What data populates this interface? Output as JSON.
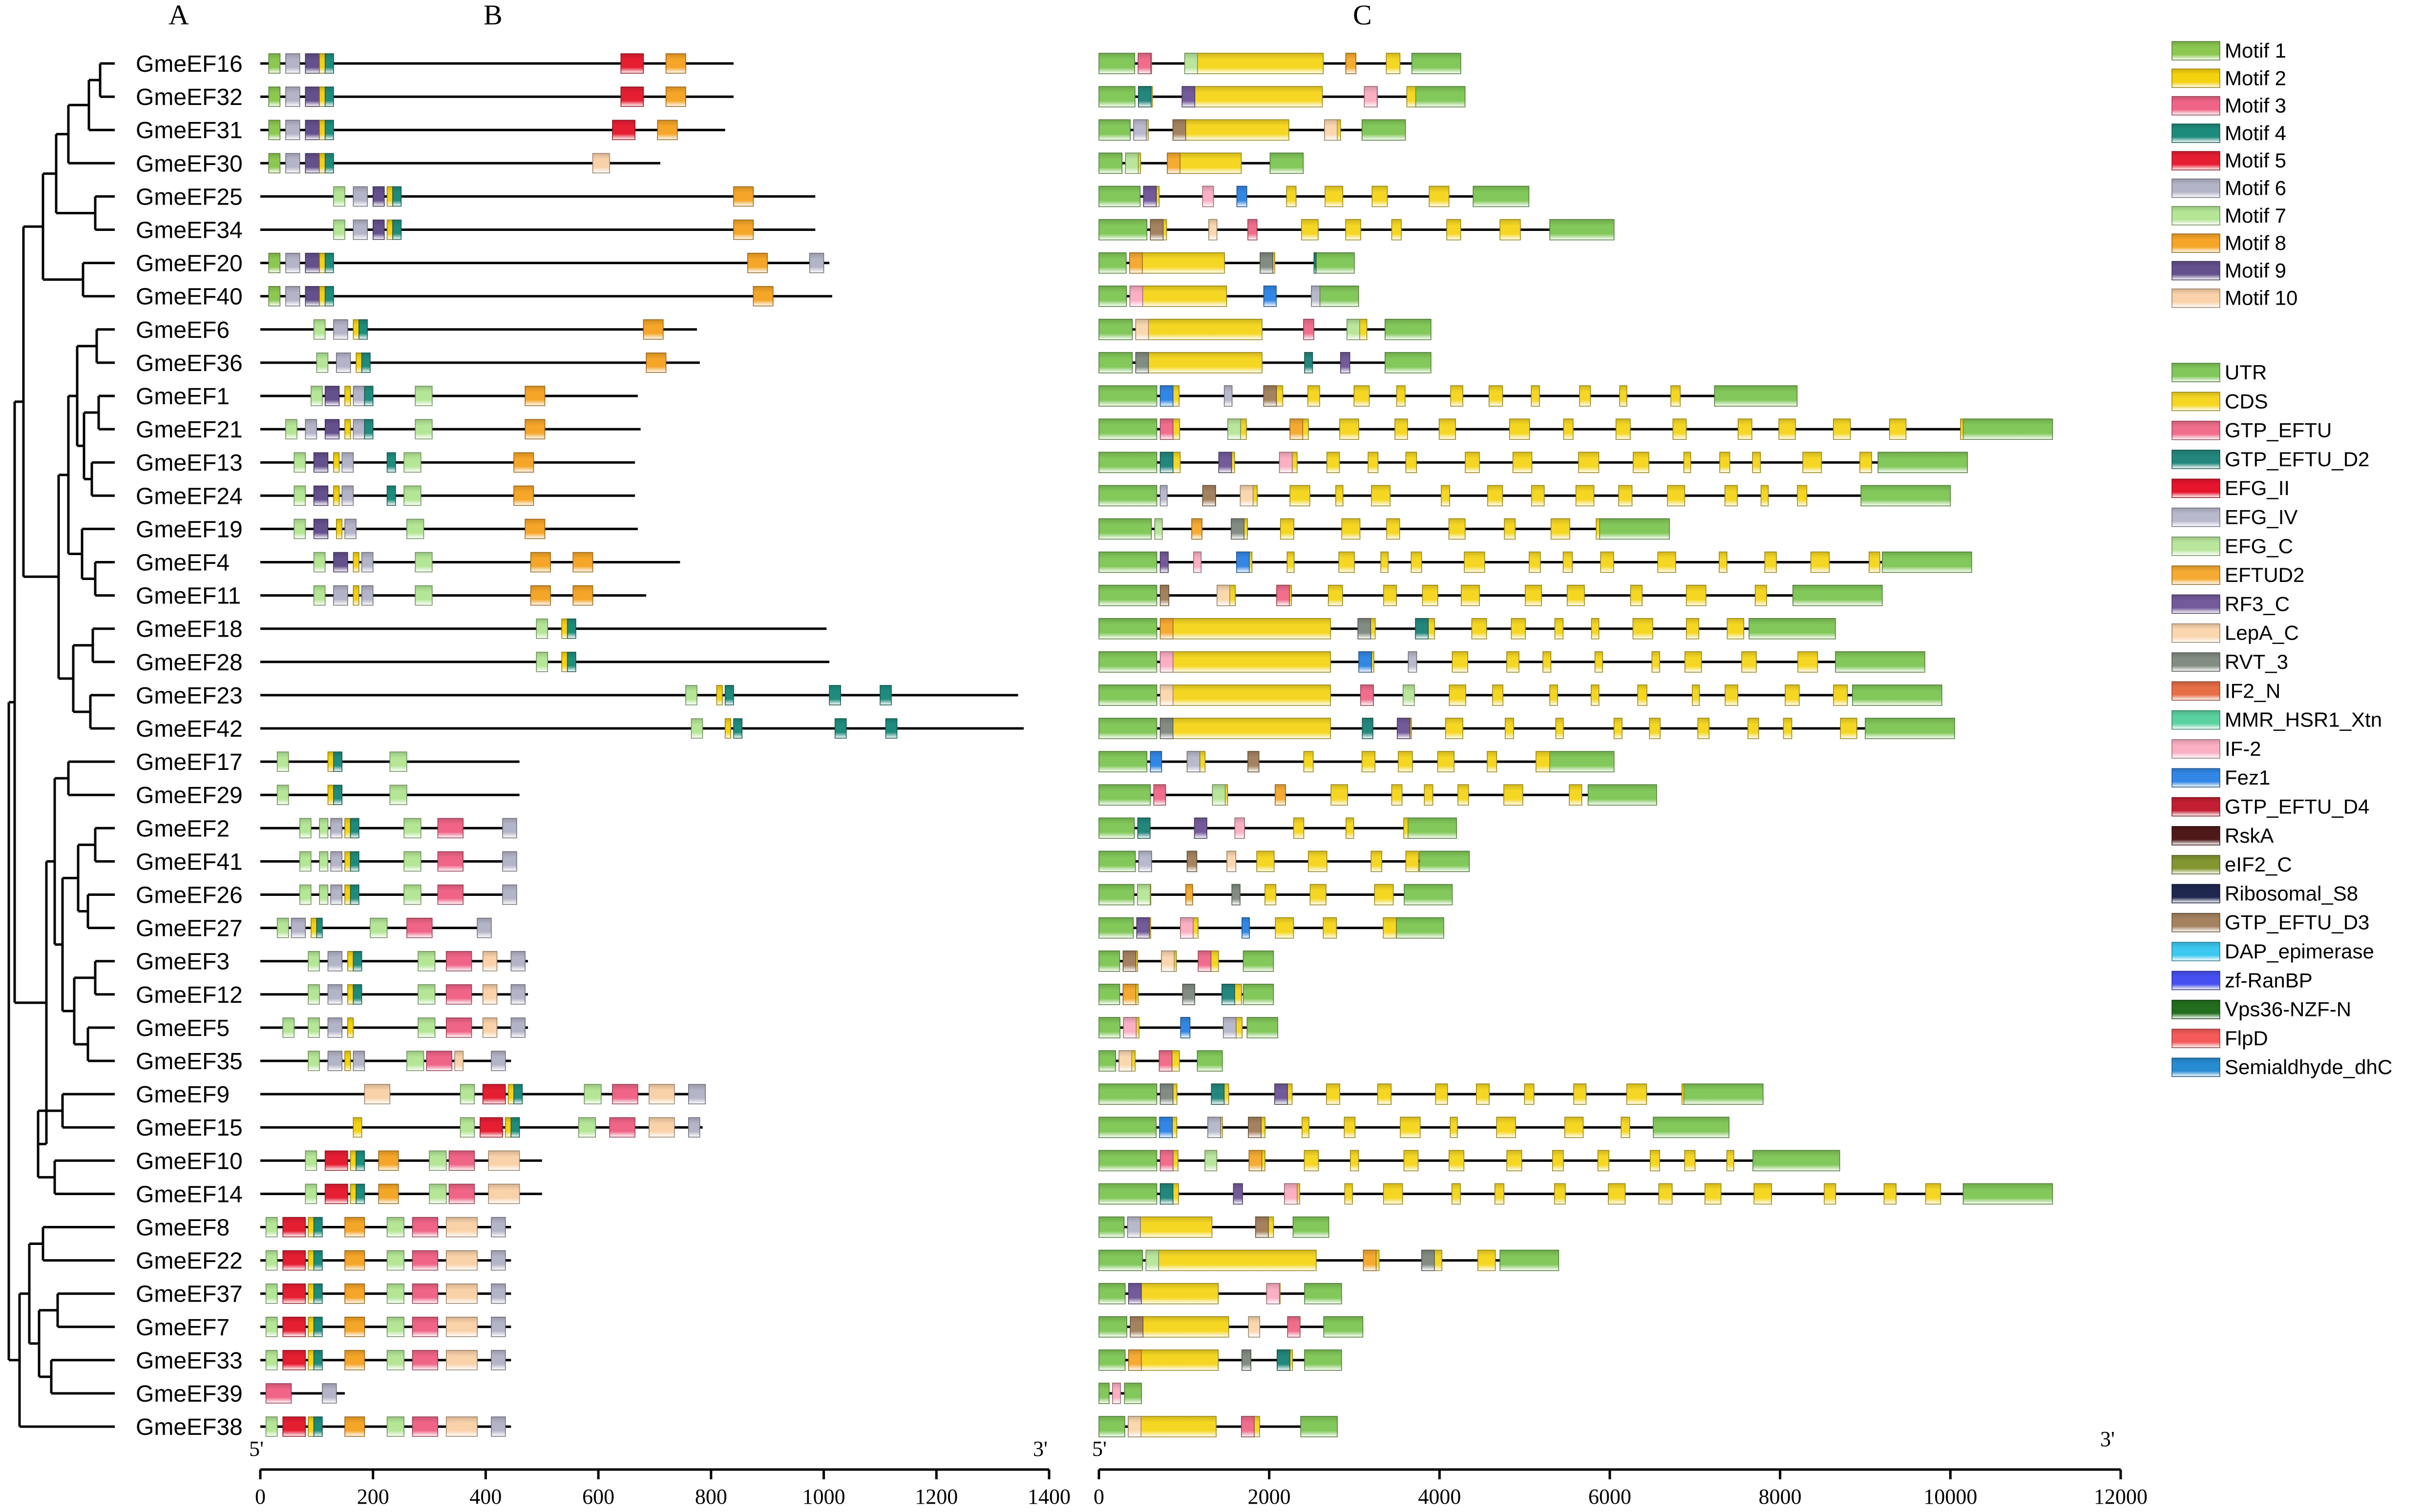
{
  "panel_labels": {
    "a": "A",
    "b": "B",
    "c": "C"
  },
  "colors": {
    "Motif 1": "#8cc850",
    "Motif 2": "#f5d20f",
    "Motif 3": "#f06487",
    "Motif 4": "#1e8c7d",
    "Motif 5": "#e61e32",
    "Motif 6": "#b4b4c8",
    "Motif 7": "#b4e696",
    "Motif 8": "#f5a528",
    "Motif 9": "#64508c",
    "Motif 10": "#fad2aa",
    "UTR": "#82c85a",
    "CDS": "#f5d723",
    "GTP_EFTU": "#f06e8c",
    "GTP_EFTU_D2": "#23877d",
    "EFG_II": "#e6142d",
    "EFG_IV": "#b9b9cd",
    "EFG_C": "#b9e69b",
    "EFTUD2": "#f5aa32",
    "RF3_C": "#735a9b",
    "LepA_C": "#fad7af",
    "RVT_3": "#828c82",
    "IF2_N": "#e66e46",
    "MMR_HSR1_Xtn": "#5ad2a0",
    "IF-2": "#faafc3",
    "Fez1": "#3287e6",
    "GTP_EFTU_D4": "#c31e32",
    "RskA": "#501919",
    "eIF2_C": "#829632",
    "Ribosomal_S8": "#1e2850",
    "GTP_EFTU_D3": "#a5825f",
    "DAP_epimerase": "#3cc8f0",
    "zf-RanBP": "#4650f0",
    "Vps36-NZF-N": "#236e1e",
    "FlpD": "#f55a5a",
    "Semialdhyde_dhC": "#288cd2"
  },
  "legend_motifs": [
    "Motif 1",
    "Motif 2",
    "Motif 3",
    "Motif 4",
    "Motif 5",
    "Motif 6",
    "Motif 7",
    "Motif 8",
    "Motif 9",
    "Motif 10"
  ],
  "legend_domains": [
    "UTR",
    "CDS",
    "GTP_EFTU",
    "GTP_EFTU_D2",
    "EFG_II",
    "EFG_IV",
    "EFG_C",
    "EFTUD2",
    "RF3_C",
    "LepA_C",
    "RVT_3",
    "IF2_N",
    "MMR_HSR1_Xtn",
    "IF-2",
    "Fez1",
    "GTP_EFTU_D4",
    "RskA",
    "eIF2_C",
    "Ribosomal_S8",
    "GTP_EFTU_D3",
    "DAP_epimerase",
    "zf-RanBP",
    "Vps36-NZF-N",
    "FlpD",
    "Semialdhyde_dhC"
  ],
  "chart_data": {
    "type": "gene_structure_diagram",
    "genes": [
      "GmeEF16",
      "GmeEF32",
      "GmeEF31",
      "GmeEF30",
      "GmeEF25",
      "GmeEF34",
      "GmeEF20",
      "GmeEF40",
      "GmeEF6",
      "GmeEF36",
      "GmeEF1",
      "GmeEF21",
      "GmeEF13",
      "GmeEF24",
      "GmeEF19",
      "GmeEF4",
      "GmeEF11",
      "GmeEF18",
      "GmeEF28",
      "GmeEF23",
      "GmeEF42",
      "GmeEF17",
      "GmeEF29",
      "GmeEF2",
      "GmeEF41",
      "GmeEF26",
      "GmeEF27",
      "GmeEF3",
      "GmeEF12",
      "GmeEF5",
      "GmeEF35",
      "GmeEF9",
      "GmeEF15",
      "GmeEF10",
      "GmeEF14",
      "GmeEF8",
      "GmeEF22",
      "GmeEF37",
      "GmeEF7",
      "GmeEF33",
      "GmeEF39",
      "GmeEF38"
    ],
    "protein_lengths": [
      840,
      840,
      825,
      710,
      985,
      985,
      1010,
      1015,
      775,
      780,
      670,
      675,
      665,
      665,
      670,
      745,
      685,
      1005,
      1010,
      1345,
      1355,
      460,
      460,
      445,
      445,
      445,
      400,
      475,
      475,
      475,
      445,
      785,
      785,
      500,
      500,
      445,
      445,
      445,
      445,
      445,
      150,
      445
    ],
    "gene_lengths": [
      4250,
      4300,
      3600,
      2400,
      5050,
      6050,
      3000,
      3050,
      3900,
      3900,
      8200,
      11200,
      10200,
      10000,
      6700,
      10250,
      9200,
      8650,
      9700,
      9900,
      10050,
      6050,
      6550,
      4200,
      4350,
      4150,
      4050,
      2050,
      2050,
      2100,
      1450,
      7800,
      7400,
      8700,
      11200,
      2700,
      5400,
      2850,
      3100,
      2850,
      500,
      2800
    ],
    "protein_axis": {
      "ticks": [
        0,
        200,
        400,
        600,
        800,
        1000,
        1200,
        1400
      ],
      "start_label": "5'",
      "end_label": "3'"
    },
    "gene_axis": {
      "ticks": [
        0,
        2000,
        4000,
        6000,
        8000,
        10000,
        12000
      ],
      "start_label": "5'",
      "end_label": "3'"
    }
  }
}
